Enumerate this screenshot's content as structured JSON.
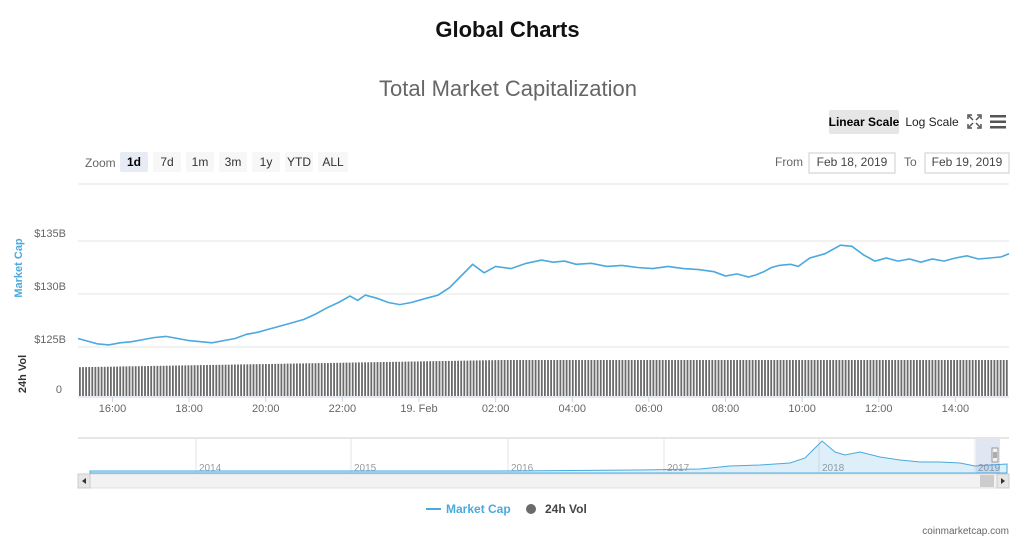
{
  "page_title": "Global Charts",
  "credit": "coinmarketcap.com",
  "toolbar": {
    "zoom_label": "Zoom",
    "zoom_buttons": [
      {
        "label": "1d",
        "active": true
      },
      {
        "label": "7d",
        "active": false
      },
      {
        "label": "1m",
        "active": false
      },
      {
        "label": "3m",
        "active": false
      },
      {
        "label": "1y",
        "active": false
      },
      {
        "label": "YTD",
        "active": false
      },
      {
        "label": "ALL",
        "active": false
      }
    ],
    "from_label": "From",
    "from_value": "Feb 18, 2019",
    "to_label": "To",
    "to_value": "Feb 19, 2019",
    "linear_scale_label": "Linear Scale",
    "log_scale_label": "Log Scale",
    "linear_active": true
  },
  "colors": {
    "market_cap": "#4aa9de",
    "volume": "#6a6a6a",
    "grid": "#e6e6e6"
  },
  "chart_data": {
    "type": "line",
    "title": "Total Market Capitalization",
    "x_tick_labels": [
      "16:00",
      "18:00",
      "20:00",
      "22:00",
      "19. Feb",
      "02:00",
      "04:00",
      "06:00",
      "08:00",
      "10:00",
      "12:00",
      "14:00"
    ],
    "x_range_hours": [
      15.1,
      39.4
    ],
    "y_axis_title": "Market Cap",
    "y_ticks": [
      "$125B",
      "$130B",
      "$135B"
    ],
    "y_tick_values": [
      125,
      130,
      135
    ],
    "ylim": [
      125,
      135
    ],
    "y_unit": "B USD",
    "volume_axis_title": "24h Vol",
    "volume_tick": "0",
    "series": [
      {
        "name": "Market Cap",
        "x_hours": [
          15.1,
          15.3,
          15.6,
          15.9,
          16.2,
          16.5,
          16.8,
          17.1,
          17.4,
          17.7,
          18.0,
          18.3,
          18.6,
          18.9,
          19.2,
          19.5,
          19.8,
          20.0,
          20.3,
          20.7,
          21.0,
          21.3,
          21.6,
          21.9,
          22.2,
          22.4,
          22.6,
          22.9,
          23.2,
          23.5,
          23.8,
          24.2,
          24.5,
          24.8,
          25.1,
          25.4,
          25.7,
          26.0,
          26.4,
          26.8,
          27.2,
          27.5,
          27.8,
          28.1,
          28.5,
          28.9,
          29.3,
          29.7,
          30.1,
          30.5,
          30.9,
          31.3,
          31.7,
          32.0,
          32.3,
          32.6,
          32.8,
          33.0,
          33.2,
          33.4,
          33.7,
          33.9,
          34.2,
          34.6,
          35.0,
          35.3,
          35.6,
          35.9,
          36.2,
          36.5,
          36.8,
          37.1,
          37.4,
          37.7,
          38.0,
          38.3,
          38.6,
          38.9,
          39.2,
          39.4
        ],
        "values": [
          125.8,
          125.6,
          125.3,
          125.2,
          125.4,
          125.5,
          125.7,
          125.9,
          126.0,
          125.8,
          125.6,
          125.5,
          125.4,
          125.6,
          125.8,
          126.2,
          126.4,
          126.6,
          126.9,
          127.3,
          127.6,
          128.1,
          128.7,
          129.2,
          129.8,
          129.4,
          129.9,
          129.6,
          129.2,
          129.0,
          129.2,
          129.6,
          129.9,
          130.6,
          131.7,
          132.8,
          132.0,
          132.6,
          132.4,
          132.9,
          133.2,
          133.0,
          133.1,
          132.8,
          132.9,
          132.6,
          132.7,
          132.5,
          132.4,
          132.6,
          132.4,
          132.3,
          132.1,
          131.7,
          131.9,
          131.6,
          131.8,
          132.1,
          132.5,
          132.7,
          132.8,
          132.6,
          133.4,
          133.8,
          134.6,
          134.5,
          133.7,
          133.1,
          133.4,
          133.1,
          133.3,
          133.0,
          133.3,
          133.1,
          133.4,
          133.6,
          133.3,
          133.4,
          133.5,
          133.8
        ]
      },
      {
        "name": "24h Vol",
        "description_values": "volume bars, relative height to max = 1",
        "values_relative_start": 0.8,
        "values_relative_end": 1.0
      }
    ],
    "navigator": {
      "year_labels": [
        "2014",
        "2015",
        "2016",
        "2017",
        "2018",
        "2019"
      ]
    },
    "legend_placement": "bottom-center",
    "grid": true
  }
}
